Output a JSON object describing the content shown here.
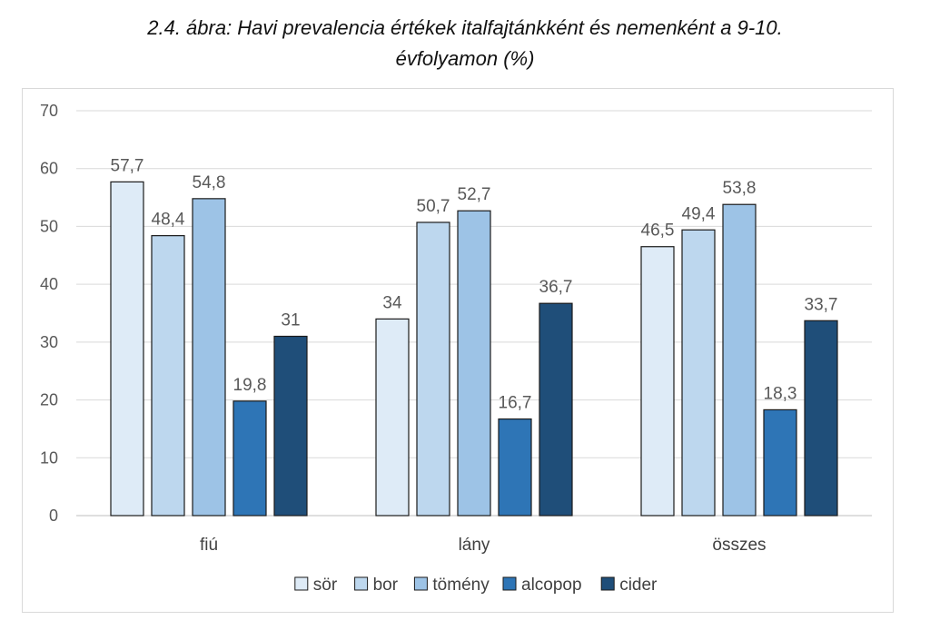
{
  "title": {
    "line1": "2.4. ábra: Havi prevalencia értékek italfajtánkként és nemenként a 9-10.",
    "line2": "évfolyamon (%)"
  },
  "chart_data": {
    "type": "bar",
    "categories": [
      "fiú",
      "lány",
      "összes"
    ],
    "series": [
      {
        "name": "sör",
        "color": "#deebf7",
        "values": [
          57.7,
          34,
          46.5
        ],
        "labels": [
          "57,7",
          "34",
          "46,5"
        ]
      },
      {
        "name": "bor",
        "color": "#bdd7ee",
        "values": [
          48.4,
          50.7,
          49.4
        ],
        "labels": [
          "48,4",
          "50,7",
          "49,4"
        ]
      },
      {
        "name": "tömény",
        "color": "#9dc3e6",
        "values": [
          54.8,
          52.7,
          53.8
        ],
        "labels": [
          "54,8",
          "52,7",
          "53,8"
        ]
      },
      {
        "name": "alcopop",
        "color": "#2e75b6",
        "values": [
          19.8,
          16.7,
          18.3
        ],
        "labels": [
          "19,8",
          "16,7",
          "18,3"
        ]
      },
      {
        "name": "cider",
        "color": "#1f4e79",
        "values": [
          31,
          36.7,
          33.7
        ],
        "labels": [
          "31",
          "36,7",
          "33,7"
        ]
      }
    ],
    "ylim": [
      0,
      70
    ],
    "yticks": [
      "0",
      "10",
      "20",
      "30",
      "40",
      "50",
      "60",
      "70"
    ],
    "grid": true,
    "legend_position": "bottom"
  }
}
